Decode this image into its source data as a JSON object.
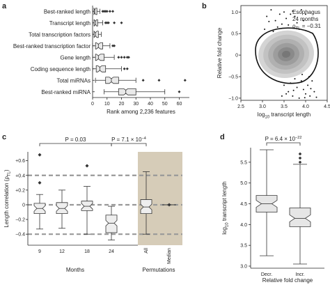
{
  "panels": {
    "a": {
      "letter": "a"
    },
    "b": {
      "letter": "b"
    },
    "c": {
      "letter": "c"
    },
    "d": {
      "letter": "d"
    }
  },
  "chart_data": [
    {
      "panel": "a",
      "type": "box-horizontal",
      "categories": [
        "Best-ranked length",
        "Transcript length",
        "Total transcription factors",
        "Best-ranked transcription factor",
        "Gene length",
        "Coding sequence length",
        "Total miRNAs",
        "Best-ranked miRNA"
      ],
      "boxes": [
        {
          "min": 0,
          "q1": 1,
          "median": 1.5,
          "q3": 3,
          "max": 5,
          "outliers": [
            7,
            8,
            9,
            10,
            12,
            14
          ]
        },
        {
          "min": 0,
          "q1": 1,
          "median": 2,
          "q3": 3.5,
          "max": 7,
          "outliers": [
            9,
            10,
            11,
            15,
            20
          ]
        },
        {
          "min": 0,
          "q1": 1,
          "median": 2,
          "q3": 4,
          "max": 6,
          "outliers": []
        },
        {
          "min": 0,
          "q1": 2,
          "median": 4,
          "q3": 7,
          "max": 12,
          "outliers": [
            14,
            15
          ]
        },
        {
          "min": 0,
          "q1": 2,
          "median": 4,
          "q3": 8,
          "max": 15,
          "outliers": [
            18,
            20,
            22,
            24,
            25
          ]
        },
        {
          "min": 0,
          "q1": 2.5,
          "median": 5,
          "q3": 9,
          "max": 20,
          "outliers": [
            22,
            24
          ]
        },
        {
          "min": 2,
          "q1": 9,
          "median": 13,
          "q3": 18,
          "max": 30,
          "outliers": [
            35,
            46,
            64
          ]
        },
        {
          "min": 8,
          "q1": 18,
          "median": 23,
          "q3": 30,
          "max": 50,
          "outliers": [
            60
          ]
        }
      ],
      "xlabel": "Rank among 2,236 features",
      "xticks": [
        0,
        10,
        20,
        30,
        40,
        50,
        60
      ],
      "xlim": [
        0,
        67
      ]
    },
    {
      "panel": "b",
      "type": "scatter-density",
      "annotation": [
        "Esophagus",
        "24 months",
        "ρ",
        "TL",
        " = −0.31"
      ],
      "xlabel": [
        "log",
        "10",
        " transcript length"
      ],
      "ylabel": "Relative fold change",
      "xticks": [
        "2.5",
        "3.0",
        "3.5",
        "4.0",
        "4.5"
      ],
      "xtick_values": [
        2.5,
        3.0,
        3.5,
        4.0,
        4.5
      ],
      "yticks": [
        "−1.0",
        "−0.5",
        "0",
        "0.5",
        "1.0"
      ],
      "ytick_values": [
        -1.0,
        -0.5,
        0,
        0.5,
        1.0
      ],
      "xlim": [
        2.5,
        4.5
      ],
      "ylim": [
        -1.05,
        1.15
      ],
      "points": [
        [
          3.1,
          0.9
        ],
        [
          3.2,
          1.05
        ],
        [
          3.3,
          0.8
        ],
        [
          3.4,
          0.95
        ],
        [
          3.5,
          1.0
        ],
        [
          3.55,
          0.85
        ],
        [
          3.6,
          0.7
        ],
        [
          3.7,
          1.02
        ],
        [
          3.75,
          0.9
        ],
        [
          3.8,
          0.75
        ],
        [
          3.9,
          1.05
        ],
        [
          3.95,
          0.8
        ],
        [
          3.05,
          0.6
        ],
        [
          3.25,
          0.55
        ],
        [
          3.85,
          0.6
        ],
        [
          3.65,
          0.95
        ],
        [
          3.45,
          0.72
        ],
        [
          3.15,
          0.78
        ],
        [
          4.0,
          0.95
        ],
        [
          3.35,
          0.65
        ],
        [
          3.6,
          -0.85
        ],
        [
          3.7,
          -0.95
        ],
        [
          3.8,
          -0.75
        ],
        [
          3.85,
          -1.0
        ],
        [
          3.9,
          -0.6
        ],
        [
          3.95,
          -0.8
        ],
        [
          4.0,
          -0.9
        ],
        [
          4.05,
          -0.7
        ],
        [
          4.1,
          -0.95
        ],
        [
          3.75,
          -0.55
        ],
        [
          3.65,
          -0.65
        ],
        [
          3.55,
          -0.9
        ],
        [
          4.15,
          -0.6
        ],
        [
          4.2,
          -0.85
        ],
        [
          3.5,
          -0.7
        ],
        [
          4.25,
          -0.98
        ],
        [
          3.92,
          -0.45
        ],
        [
          4.08,
          -0.5
        ],
        [
          3.45,
          -0.95
        ],
        [
          4.12,
          -0.78
        ],
        [
          3.72,
          -0.82
        ],
        [
          3.98,
          -0.99
        ]
      ]
    },
    {
      "panel": "c",
      "type": "box-vertical",
      "categories": [
        "9",
        "12",
        "18",
        "24",
        "All",
        "Median"
      ],
      "group_labels": [
        "Months",
        "Permutations"
      ],
      "ylabel": [
        "Length correlation (ρ",
        "TL",
        ")"
      ],
      "yticks": [
        "+0.6",
        "+0.4",
        "+0.2",
        "0",
        "−0.2",
        "−0.4"
      ],
      "ytick_values": [
        0.6,
        0.4,
        0.2,
        0,
        -0.2,
        -0.4
      ],
      "ylim": [
        -0.55,
        0.72
      ],
      "reference_lines": [
        0.4,
        0,
        -0.4
      ],
      "brackets": [
        {
          "from": 0,
          "to": 3,
          "label": "P = 0.03"
        },
        {
          "from": 3,
          "to": 4,
          "label": "P = 7.1 × 10",
          "exp": "−4"
        }
      ],
      "boxes": [
        {
          "min": -0.33,
          "q1": -0.12,
          "median": -0.05,
          "q3": 0.02,
          "max": 0.14,
          "outliers": [
            0.68,
            0.3
          ]
        },
        {
          "min": -0.32,
          "q1": -0.12,
          "median": -0.05,
          "q3": 0.03,
          "max": 0.2,
          "outliers": []
        },
        {
          "min": -0.4,
          "q1": -0.08,
          "median": -0.02,
          "q3": 0.05,
          "max": 0.25,
          "outliers": [
            0.53
          ]
        },
        {
          "min": -0.48,
          "q1": -0.38,
          "median": -0.25,
          "q3": -0.14,
          "max": -0.02,
          "outliers": []
        },
        {
          "min": -0.4,
          "q1": -0.12,
          "median": -0.03,
          "q3": 0.07,
          "max": 0.45,
          "outliers": []
        },
        {
          "median": 0.0
        }
      ],
      "shaded_group": "Permutations"
    },
    {
      "panel": "d",
      "type": "box-vertical",
      "categories": [
        "Decr.",
        "Incr."
      ],
      "xlabel": "Relative fold change",
      "ylabel": [
        "log",
        "10",
        " transcript length"
      ],
      "yticks": [
        "5.5",
        "5.0",
        "4.5",
        "4.0",
        "3.5",
        "3.0"
      ],
      "ytick_values": [
        5.5,
        5.0,
        4.5,
        4.0,
        3.5,
        3.0
      ],
      "ylim": [
        2.95,
        5.85
      ],
      "bracket": {
        "label": "P = 6.4 × 10",
        "exp": "−22"
      },
      "boxes": [
        {
          "min": 3.25,
          "q1": 4.3,
          "median": 4.5,
          "q3": 4.7,
          "max": 5.8,
          "outliers": []
        },
        {
          "min": 3.05,
          "q1": 3.95,
          "median": 4.15,
          "q3": 4.4,
          "max": 5.45,
          "outliers": [
            5.5,
            5.6,
            5.7
          ]
        }
      ]
    }
  ]
}
